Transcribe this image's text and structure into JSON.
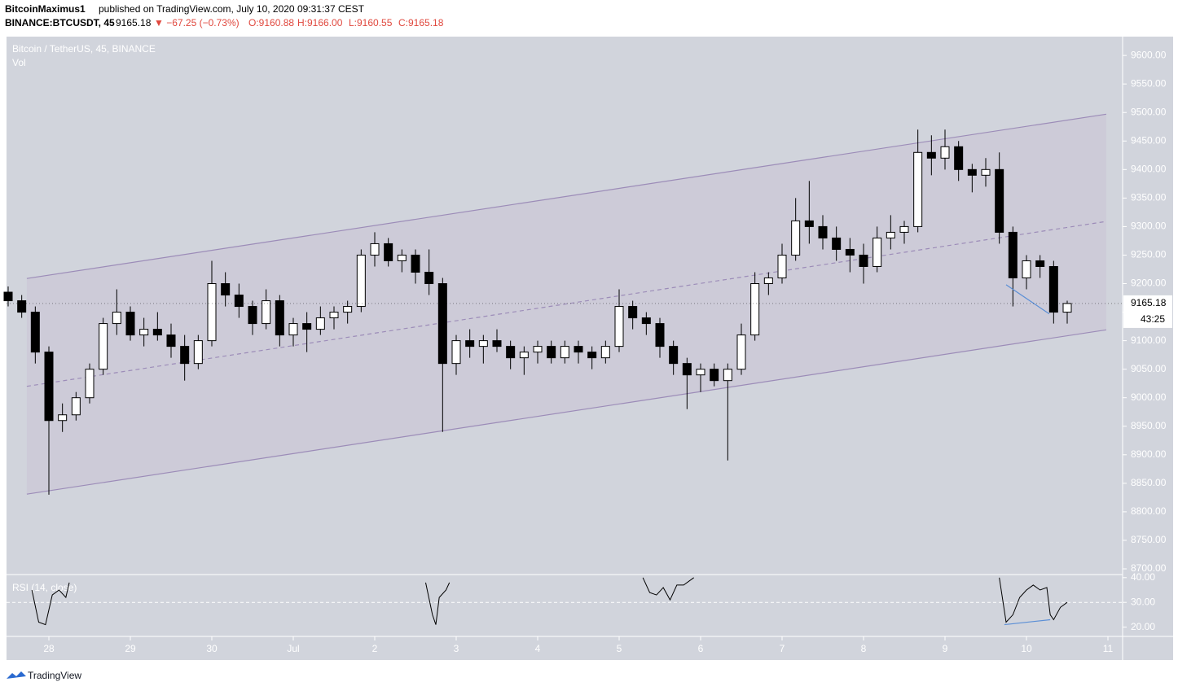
{
  "header": {
    "author": "BitcoinMaximus1",
    "published": "published on TradingView.com, July 10, 2020 09:31:37 CEST",
    "symbol": "BINANCE:BTCUSDT, 45",
    "price": "9165.18",
    "change": "▼ −67.25 (−0.73%)",
    "open": "O:9160.88",
    "high": "H:9166.00",
    "low": "L:9160.55",
    "close": "C:9165.18"
  },
  "chart_data": [
    {
      "type": "candlestick",
      "title": "Bitcoin / TetherUS, 45, BINANCE",
      "subtitle": "Vol",
      "up_color": "#ffffff",
      "down_color": "#000000",
      "edge_color": "#000000",
      "x": [
        -12,
        -8,
        -4,
        0,
        4,
        8,
        12,
        16,
        20,
        24,
        28,
        32,
        36,
        40,
        44,
        48,
        52,
        56,
        60,
        64,
        68,
        72,
        76,
        80,
        84,
        88,
        92,
        96,
        100,
        104,
        108,
        112,
        116,
        120,
        124,
        128,
        132,
        136,
        140,
        144,
        148,
        152,
        156,
        160,
        164,
        168,
        172,
        176,
        180,
        184,
        188,
        192,
        196,
        200,
        204,
        208,
        212,
        216,
        220,
        224,
        228,
        232,
        236,
        240,
        244,
        248,
        252,
        256,
        260,
        264,
        268,
        272,
        276,
        280,
        284,
        288,
        292,
        296,
        300
      ],
      "open": [
        9185,
        9170,
        9150,
        9080,
        8960,
        8970,
        9000,
        9050,
        9130,
        9150,
        9110,
        9120,
        9110,
        9090,
        9060,
        9100,
        9200,
        9180,
        9160,
        9130,
        9170,
        9110,
        9130,
        9120,
        9140,
        9150,
        9160,
        9250,
        9270,
        9240,
        9250,
        9220,
        9200,
        9060,
        9100,
        9090,
        9100,
        9090,
        9070,
        9080,
        9090,
        9070,
        9090,
        9080,
        9070,
        9090,
        9160,
        9140,
        9130,
        9090,
        9060,
        9040,
        9050,
        9030,
        9050,
        9110,
        9200,
        9210,
        9250,
        9310,
        9300,
        9280,
        9260,
        9250,
        9230,
        9280,
        9290,
        9300,
        9430,
        9420,
        9440,
        9400,
        9390,
        9400,
        9290,
        9210,
        9240,
        9230,
        9150
      ],
      "high": [
        9195,
        9180,
        9160,
        9090,
        8990,
        9010,
        9060,
        9140,
        9190,
        9160,
        9140,
        9150,
        9130,
        9110,
        9110,
        9240,
        9220,
        9200,
        9170,
        9190,
        9180,
        9140,
        9150,
        9160,
        9160,
        9170,
        9260,
        9290,
        9280,
        9260,
        9260,
        9260,
        9210,
        9110,
        9120,
        9110,
        9120,
        9100,
        9090,
        9100,
        9100,
        9100,
        9100,
        9090,
        9100,
        9190,
        9170,
        9150,
        9140,
        9100,
        9070,
        9060,
        9060,
        9060,
        9130,
        9220,
        9220,
        9270,
        9350,
        9380,
        9320,
        9300,
        9280,
        9270,
        9300,
        9320,
        9310,
        9470,
        9460,
        9470,
        9450,
        9410,
        9420,
        9430,
        9300,
        9250,
        9250,
        9240,
        9170
      ],
      "low": [
        9160,
        9140,
        9060,
        8830,
        8940,
        8960,
        8990,
        9040,
        9110,
        9100,
        9090,
        9100,
        9070,
        9030,
        9050,
        9090,
        9160,
        9140,
        9110,
        9120,
        9090,
        9090,
        9080,
        9110,
        9120,
        9130,
        9150,
        9230,
        9230,
        9220,
        9200,
        9180,
        8940,
        9040,
        9070,
        9060,
        9080,
        9050,
        9040,
        9060,
        9060,
        9060,
        9060,
        9050,
        9060,
        9080,
        9120,
        9110,
        9070,
        9040,
        8980,
        9010,
        9020,
        8890,
        9040,
        9100,
        9180,
        9200,
        9240,
        9270,
        9260,
        9240,
        9220,
        9200,
        9220,
        9260,
        9270,
        9290,
        9390,
        9400,
        9380,
        9360,
        9370,
        9270,
        9160,
        9190,
        9210,
        9130,
        9130
      ],
      "close": [
        9170,
        9150,
        9080,
        8960,
        8970,
        9000,
        9050,
        9130,
        9150,
        9110,
        9120,
        9110,
        9090,
        9060,
        9100,
        9200,
        9180,
        9160,
        9130,
        9170,
        9110,
        9130,
        9120,
        9140,
        9150,
        9160,
        9250,
        9270,
        9240,
        9250,
        9220,
        9200,
        9060,
        9100,
        9090,
        9100,
        9090,
        9070,
        9080,
        9090,
        9070,
        9090,
        9080,
        9070,
        9090,
        9160,
        9140,
        9130,
        9090,
        9060,
        9040,
        9050,
        9030,
        9050,
        9110,
        9200,
        9210,
        9250,
        9310,
        9300,
        9280,
        9260,
        9250,
        9230,
        9280,
        9290,
        9300,
        9430,
        9420,
        9440,
        9400,
        9390,
        9400,
        9290,
        9210,
        9240,
        9230,
        9150,
        9165.18
      ],
      "last_price": 9165.18,
      "countdown": "43:25",
      "channel": {
        "x": [
          -6.5,
          311.5
        ],
        "upper": [
          9209,
          9497
        ],
        "middle": [
          9020,
          9309
        ],
        "lower": [
          8831,
          9119
        ],
        "color": "#9c8cb8"
      },
      "trendline": {
        "x": [
          282,
          294.7
        ],
        "y": [
          9198,
          9147
        ],
        "color": "#5b8fd6"
      },
      "xlim": [
        -12.48,
        316.32
      ],
      "xticks": [
        {
          "value": 0,
          "label": "28"
        },
        {
          "value": 24,
          "label": "29"
        },
        {
          "value": 48,
          "label": "30"
        },
        {
          "value": 72,
          "label": "Jul"
        },
        {
          "value": 96,
          "label": "2"
        },
        {
          "value": 120,
          "label": "3"
        },
        {
          "value": 144,
          "label": "4"
        },
        {
          "value": 168,
          "label": "5"
        },
        {
          "value": 192,
          "label": "6"
        },
        {
          "value": 216,
          "label": "7"
        },
        {
          "value": 240,
          "label": "8"
        },
        {
          "value": 264,
          "label": "9"
        },
        {
          "value": 288,
          "label": "10"
        },
        {
          "value": 312,
          "label": "11"
        }
      ],
      "ylim": [
        8690,
        9633
      ],
      "yticks": [
        {
          "value": 8700,
          "label": "8700.00"
        },
        {
          "value": 8750,
          "label": "8750.00"
        },
        {
          "value": 8800,
          "label": "8800.00"
        },
        {
          "value": 8850,
          "label": "8850.00"
        },
        {
          "value": 8900,
          "label": "8900.00"
        },
        {
          "value": 8950,
          "label": "8950.00"
        },
        {
          "value": 9000,
          "label": "9000.00"
        },
        {
          "value": 9050,
          "label": "9050.00"
        },
        {
          "value": 9100,
          "label": "9100.00"
        },
        {
          "value": 9150,
          "label": "9150.00"
        },
        {
          "value": 9200,
          "label": "9200.00"
        },
        {
          "value": 9250,
          "label": "9250.00"
        },
        {
          "value": 9300,
          "label": "9300.00"
        },
        {
          "value": 9350,
          "label": "9350.00"
        },
        {
          "value": 9400,
          "label": "9400.00"
        },
        {
          "value": 9450,
          "label": "9450.00"
        },
        {
          "value": 9500,
          "label": "9500.00"
        },
        {
          "value": 9550,
          "label": "9550.00"
        },
        {
          "value": 9600,
          "label": "9600.00"
        }
      ]
    },
    {
      "type": "line",
      "title": "RSI (14, close)",
      "color": "#000000",
      "x": [
        -5,
        -3,
        -1,
        1,
        3,
        5,
        6,
        null,
        111,
        113,
        114,
        115,
        117,
        118,
        null,
        175,
        177,
        179,
        181,
        183,
        185,
        187,
        190,
        null,
        280,
        282,
        284,
        286,
        288,
        290,
        292,
        294,
        295,
        296,
        298,
        300
      ],
      "values": [
        35,
        22,
        21,
        33,
        35,
        32,
        38,
        null,
        38,
        25,
        21,
        32,
        35,
        38,
        null,
        40,
        34,
        33,
        36,
        31,
        37,
        37,
        40,
        null,
        40,
        22,
        25,
        32,
        35,
        37,
        35,
        36,
        25,
        23,
        28,
        30
      ],
      "midline": 30,
      "trendline": {
        "x": [
          281.5,
          295
        ],
        "y": [
          21,
          23
        ],
        "color": "#5b8fd6"
      },
      "xlim": [
        -12.48,
        316.32
      ],
      "ylim": [
        16.25,
        41.25
      ],
      "yticks": [
        {
          "value": 40,
          "label": "40.00"
        },
        {
          "value": 30,
          "label": "30.00"
        },
        {
          "value": 20,
          "label": "20.00"
        }
      ]
    }
  ],
  "footer": {
    "brand": "TradingView"
  }
}
